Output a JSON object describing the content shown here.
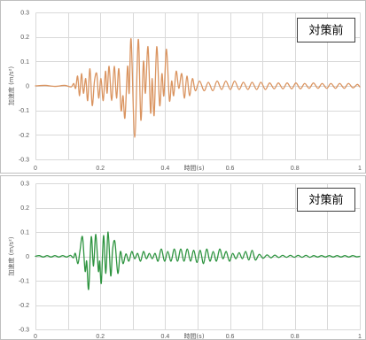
{
  "chart_data": [
    {
      "type": "line",
      "xlabel": "時間(s)",
      "ylabel": "加速度 (m/s²)",
      "xlim": [
        0,
        1
      ],
      "ylim": [
        -0.3,
        0.3
      ],
      "xticks": [
        0,
        0.2,
        0.4,
        0.6,
        0.8,
        1
      ],
      "xtick_labels": [
        "0",
        "0.2",
        "0.4",
        "0.6",
        "0.8",
        "1"
      ],
      "yticks": [
        0.3,
        0.2,
        0.1,
        0,
        -0.1,
        -0.2,
        -0.3
      ],
      "ytick_labels": [
        "0.3",
        "0.2",
        "0.1",
        "0",
        "-0.1",
        "-0.2",
        "-0.3"
      ],
      "grid": true,
      "legend": "top-right",
      "series": [
        {
          "name": "対策前",
          "color": "#DA9460",
          "x": [
            0,
            0.03,
            0.06,
            0.09,
            0.11,
            0.118,
            0.124,
            0.13,
            0.136,
            0.142,
            0.148,
            0.155,
            0.161,
            0.168,
            0.175,
            0.182,
            0.189,
            0.195,
            0.202,
            0.209,
            0.216,
            0.221,
            0.227,
            0.235,
            0.243,
            0.25,
            0.257,
            0.264,
            0.27,
            0.276,
            0.284,
            0.289,
            0.295,
            0.306,
            0.317,
            0.325,
            0.333,
            0.339,
            0.347,
            0.355,
            0.36,
            0.366,
            0.374,
            0.383,
            0.39,
            0.396,
            0.404,
            0.413,
            0.42,
            0.426,
            0.434,
            0.442,
            0.451,
            0.459,
            0.467,
            0.475,
            0.484,
            0.493,
            0.506,
            0.52,
            0.533,
            0.547,
            0.56,
            0.574,
            0.587,
            0.601,
            0.614,
            0.628,
            0.641,
            0.655,
            0.668,
            0.682,
            0.695,
            0.709,
            0.722,
            0.736,
            0.749,
            0.763,
            0.776,
            0.79,
            0.803,
            0.817,
            0.83,
            0.844,
            0.857,
            0.871,
            0.884,
            0.898,
            0.911,
            0.925,
            0.938,
            0.952,
            0.965,
            0.979,
            0.992,
            1
          ],
          "y": [
            0,
            0.002,
            -0.002,
            0.002,
            -0.004,
            0.01,
            -0.01,
            0.04,
            -0.04,
            0.05,
            -0.03,
            0.03,
            -0.06,
            0.07,
            -0.08,
            0.02,
            0.05,
            -0.05,
            0.03,
            -0.06,
            0.06,
            -0.03,
            0.08,
            -0.06,
            0.08,
            -0.05,
            0.07,
            -0.1,
            -0.04,
            -0.13,
            0.08,
            -0.03,
            0.19,
            -0.21,
            0.19,
            -0.14,
            0.1,
            -0.03,
            0.16,
            -0.11,
            0.03,
            -0.12,
            0.16,
            -0.08,
            0.05,
            -0.04,
            0.15,
            -0.06,
            0.02,
            -0.04,
            0.06,
            -0.01,
            0.05,
            -0.05,
            0.04,
            -0.04,
            0.03,
            -0.02,
            0.02,
            -0.02,
            0.015,
            -0.02,
            0.02,
            -0.015,
            0.02,
            -0.015,
            0.02,
            -0.015,
            0.015,
            -0.015,
            0.015,
            -0.015,
            0.015,
            -0.015,
            0.012,
            -0.012,
            0.012,
            -0.012,
            0.012,
            -0.012,
            0.012,
            -0.012,
            0.01,
            -0.01,
            0.012,
            -0.01,
            0.01,
            -0.01,
            0.01,
            -0.01,
            0.01,
            -0.01,
            0.01,
            -0.008,
            0.006,
            -0.004
          ]
        }
      ]
    },
    {
      "type": "line",
      "xlabel": "時間(s)",
      "ylabel": "加速度 (m/s²)",
      "xlim": [
        0,
        1
      ],
      "ylim": [
        -0.3,
        0.3
      ],
      "xticks": [
        0,
        0.2,
        0.4,
        0.6,
        0.8,
        1
      ],
      "xtick_labels": [
        "0",
        "0.2",
        "0.4",
        "0.6",
        "0.8",
        "1"
      ],
      "yticks": [
        0.3,
        0.2,
        0.1,
        0,
        -0.1,
        -0.2,
        -0.3
      ],
      "ytick_labels": [
        "0.3",
        "0.2",
        "0.1",
        "0",
        "-0.1",
        "-0.2",
        "-0.3"
      ],
      "grid": true,
      "legend": "top-right",
      "series": [
        {
          "name": "対策前",
          "color": "#2E9440",
          "x": [
            0,
            0.012,
            0.024,
            0.036,
            0.048,
            0.06,
            0.072,
            0.084,
            0.096,
            0.108,
            0.117,
            0.123,
            0.131,
            0.137,
            0.145,
            0.153,
            0.158,
            0.164,
            0.172,
            0.179,
            0.186,
            0.194,
            0.198,
            0.203,
            0.21,
            0.217,
            0.224,
            0.232,
            0.238,
            0.245,
            0.254,
            0.262,
            0.27,
            0.279,
            0.288,
            0.297,
            0.306,
            0.315,
            0.324,
            0.333,
            0.342,
            0.351,
            0.36,
            0.369,
            0.378,
            0.388,
            0.398,
            0.408,
            0.418,
            0.428,
            0.438,
            0.448,
            0.458,
            0.468,
            0.478,
            0.488,
            0.498,
            0.508,
            0.518,
            0.528,
            0.538,
            0.548,
            0.558,
            0.568,
            0.578,
            0.588,
            0.598,
            0.608,
            0.618,
            0.628,
            0.638,
            0.648,
            0.658,
            0.668,
            0.678,
            0.69,
            0.702,
            0.714,
            0.726,
            0.738,
            0.75,
            0.762,
            0.774,
            0.786,
            0.798,
            0.81,
            0.822,
            0.834,
            0.846,
            0.858,
            0.87,
            0.882,
            0.894,
            0.906,
            0.918,
            0.93,
            0.942,
            0.954,
            0.966,
            0.978,
            0.99,
            1
          ],
          "y": [
            0,
            0.003,
            -0.003,
            0.003,
            -0.003,
            0.003,
            -0.003,
            0.003,
            -0.003,
            0.004,
            -0.006,
            0.012,
            -0.03,
            0.02,
            0.08,
            -0.06,
            -0.02,
            -0.135,
            0.08,
            -0.04,
            0.09,
            -0.06,
            -0.02,
            -0.11,
            0.085,
            -0.07,
            0.1,
            -0.08,
            0.03,
            0.06,
            -0.07,
            0.02,
            -0.03,
            0.01,
            -0.02,
            0.02,
            -0.01,
            0.012,
            -0.02,
            0.02,
            -0.01,
            0.012,
            -0.01,
            0.012,
            -0.02,
            0.03,
            -0.02,
            0.02,
            -0.02,
            0.03,
            -0.02,
            0.03,
            -0.02,
            0.03,
            -0.02,
            0.025,
            -0.025,
            0.025,
            -0.03,
            0.03,
            -0.02,
            0.02,
            -0.02,
            0.03,
            -0.01,
            0.02,
            -0.02,
            0.012,
            -0.01,
            0.015,
            -0.01,
            0.02,
            -0.015,
            0.025,
            -0.015,
            0.008,
            -0.008,
            0.006,
            -0.006,
            0.005,
            -0.005,
            0.004,
            -0.004,
            0.004,
            -0.004,
            0.004,
            -0.004,
            0.004,
            -0.004,
            0.003,
            -0.003,
            0.003,
            -0.003,
            0.003,
            -0.003,
            0.003,
            -0.003,
            0.003,
            -0.003,
            0.003,
            -0.002,
            0
          ]
        }
      ]
    }
  ]
}
